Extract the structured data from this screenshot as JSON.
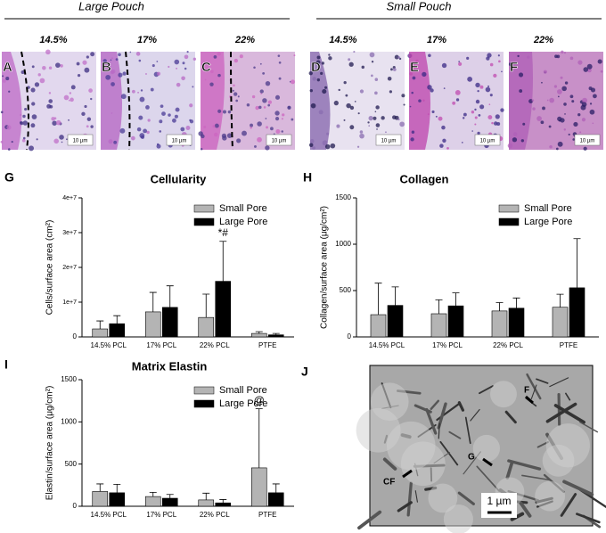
{
  "header": {
    "left": "Large Pouch",
    "right": "Small Pouch"
  },
  "micrographs": [
    {
      "panel": "A",
      "percent": "14.5%",
      "scale": "10 µm"
    },
    {
      "panel": "B",
      "percent": "17%",
      "scale": "10 µm"
    },
    {
      "panel": "C",
      "percent": "22%",
      "scale": "10 µm"
    },
    {
      "panel": "D",
      "percent": "14.5%",
      "scale": "10 µm"
    },
    {
      "panel": "E",
      "percent": "17%",
      "scale": "10 µm"
    },
    {
      "panel": "F",
      "percent": "22%",
      "scale": "10 µm"
    }
  ],
  "tem": {
    "panel": "J",
    "labels": [
      "F",
      "G",
      "CF"
    ],
    "scale": "1 µm"
  },
  "chart_data": [
    {
      "type": "bar",
      "panel": "G",
      "title": "Cellularity",
      "ylabel": "Cells/surface area (cm²)",
      "categories": [
        "14.5% PCL",
        "17% PCL",
        "22% PCL",
        "PTFE"
      ],
      "series": [
        {
          "name": "Small Pore",
          "color": "#b4b4b4",
          "values": [
            2300000,
            7200000,
            5600000,
            1000000
          ],
          "errors": [
            2300000,
            5600000,
            6700000,
            500000
          ],
          "annotations": [
            null,
            null,
            null,
            null
          ]
        },
        {
          "name": "Large Pore",
          "color": "#000000",
          "values": [
            3800000,
            8500000,
            16000000,
            600000
          ],
          "errors": [
            2300000,
            6200000,
            11500000,
            400000
          ],
          "annotations": [
            null,
            null,
            "*#",
            null
          ]
        }
      ],
      "ylim": [
        0,
        40000000
      ],
      "yticks": [
        0,
        {
          "value": 10000000,
          "label": "1e+7"
        },
        {
          "value": 20000000,
          "label": "2e+7"
        },
        {
          "value": 30000000,
          "label": "3e+7"
        },
        {
          "value": 40000000,
          "label": "4e+7"
        }
      ],
      "legend": "upper right"
    },
    {
      "type": "bar",
      "panel": "H",
      "title": "Collagen",
      "ylabel": "Collagen/surface area (μg/cm²)",
      "categories": [
        "14.5% PCL",
        "17% PCL",
        "22% PCL",
        "PTFE"
      ],
      "series": [
        {
          "name": "Small Pore",
          "color": "#b4b4b4",
          "values": [
            240,
            250,
            280,
            320
          ],
          "errors": [
            340,
            150,
            90,
            140
          ],
          "annotations": [
            null,
            null,
            null,
            null
          ]
        },
        {
          "name": "Large Pore",
          "color": "#000000",
          "values": [
            340,
            335,
            310,
            530
          ],
          "errors": [
            200,
            140,
            110,
            530
          ],
          "annotations": [
            null,
            null,
            null,
            null
          ]
        }
      ],
      "ylim": [
        0,
        1500
      ],
      "yticks": [
        0,
        500,
        1000,
        1500
      ],
      "legend": "upper right"
    },
    {
      "type": "bar",
      "panel": "I",
      "title": "Matrix Elastin",
      "ylabel": "Elastin/surface area (μg/cm²)",
      "categories": [
        "14.5% PCL",
        "17% PCL",
        "22% PCL",
        "PTFE"
      ],
      "series": [
        {
          "name": "Small Pore",
          "color": "#b4b4b4",
          "values": [
            175,
            115,
            75,
            455
          ],
          "errors": [
            90,
            50,
            80,
            700
          ],
          "annotations": [
            null,
            null,
            null,
            "@"
          ]
        },
        {
          "name": "Large Pore",
          "color": "#000000",
          "values": [
            160,
            95,
            40,
            160
          ],
          "errors": [
            100,
            45,
            40,
            105
          ],
          "annotations": [
            null,
            null,
            null,
            null
          ]
        }
      ],
      "ylim": [
        0,
        1500
      ],
      "yticks": [
        0,
        500,
        1000,
        1500
      ],
      "legend": "upper right"
    }
  ]
}
